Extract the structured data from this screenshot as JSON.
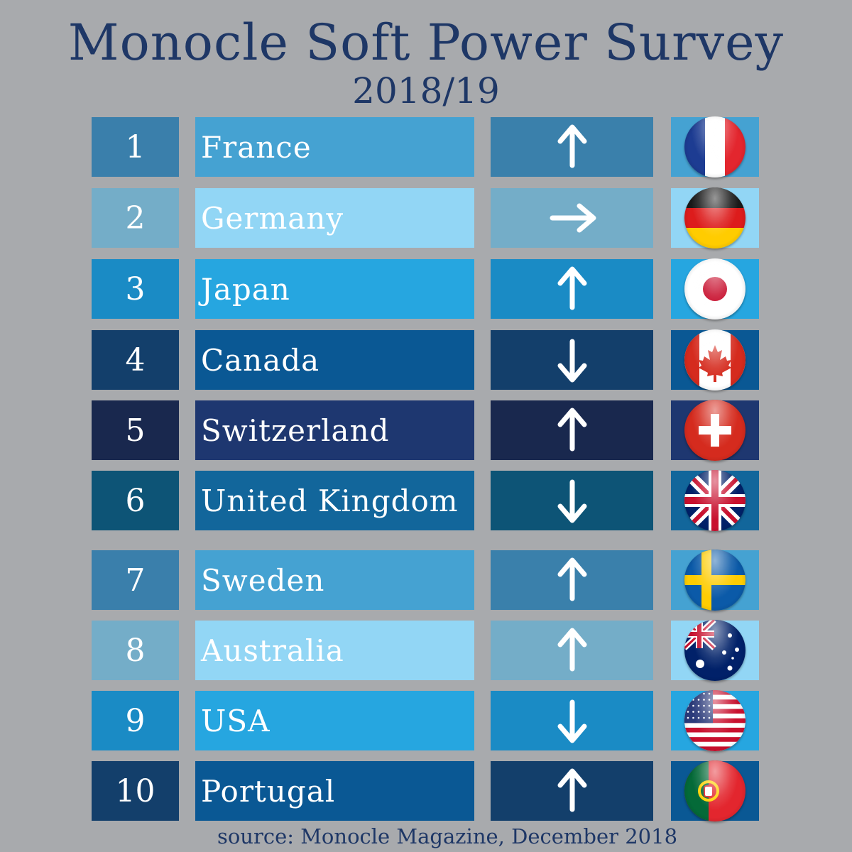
{
  "title": "Monocle Soft Power Survey",
  "subtitle": "2018/19",
  "source": "source: Monocle Magazine, December 2018",
  "chart_data": {
    "type": "table",
    "columns": [
      "rank",
      "country",
      "trend",
      "flag"
    ],
    "rows": [
      {
        "rank": "1",
        "country": "France",
        "trend": "up",
        "flag": "france-flag-icon"
      },
      {
        "rank": "2",
        "country": "Germany",
        "trend": "right",
        "flag": "germany-flag-icon"
      },
      {
        "rank": "3",
        "country": "Japan",
        "trend": "up",
        "flag": "japan-flag-icon"
      },
      {
        "rank": "4",
        "country": "Canada",
        "trend": "down",
        "flag": "canada-flag-icon"
      },
      {
        "rank": "5",
        "country": "Switzerland",
        "trend": "up",
        "flag": "switzerland-flag-icon"
      },
      {
        "rank": "6",
        "country": "United Kingdom",
        "trend": "down",
        "flag": "uk-flag-icon"
      },
      {
        "rank": "7",
        "country": "Sweden",
        "trend": "up",
        "flag": "sweden-flag-icon"
      },
      {
        "rank": "8",
        "country": "Australia",
        "trend": "up",
        "flag": "australia-flag-icon"
      },
      {
        "rank": "9",
        "country": "USA",
        "trend": "down",
        "flag": "usa-flag-icon"
      },
      {
        "rank": "10",
        "country": "Portugal",
        "trend": "up",
        "flag": "portugal-flag-icon"
      }
    ]
  },
  "colors": {
    "background": "#a8aaad",
    "title": "#1e3766",
    "palette": [
      {
        "rank": "#3a7fab",
        "name": "#45a2d2",
        "trend": "#3a80ab",
        "flag": "#45a2d2"
      },
      {
        "rank": "#74adc8",
        "name": "#92d6f5",
        "trend": "#74adc8",
        "flag": "#92d6f5"
      },
      {
        "rank": "#1a8bc5",
        "name": "#26a6e0",
        "trend": "#1a8bc5",
        "flag": "#26a6e0"
      },
      {
        "rank": "#133f6b",
        "name": "#0a5894",
        "trend": "#133f6b",
        "flag": "#0a5894"
      },
      {
        "rank": "#19284e",
        "name": "#1e3770",
        "trend": "#19284e",
        "flag": "#1e3770"
      },
      {
        "rank": "#0d5476",
        "name": "#12669b",
        "trend": "#0d5476",
        "flag": "#12669b"
      },
      {
        "rank": "#3a7fab",
        "name": "#45a2d2",
        "trend": "#3a80ab",
        "flag": "#45a2d2"
      },
      {
        "rank": "#74adc8",
        "name": "#92d6f5",
        "trend": "#74adc8",
        "flag": "#92d6f5"
      },
      {
        "rank": "#1a8bc5",
        "name": "#26a6e0",
        "trend": "#1a8bc5",
        "flag": "#26a6e0"
      },
      {
        "rank": "#133f6b",
        "name": "#0a5894",
        "trend": "#133f6b",
        "flag": "#0a5894"
      }
    ]
  }
}
